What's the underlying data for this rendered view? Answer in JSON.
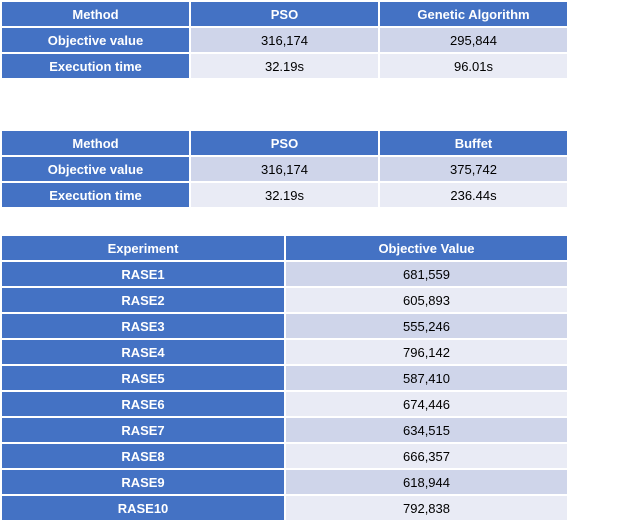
{
  "table1": {
    "headers": [
      "Method",
      "PSO",
      "Genetic Algorithm"
    ],
    "rows": [
      {
        "label": "Objective value",
        "values": [
          "316,174",
          "295,844"
        ]
      },
      {
        "label": "Execution time",
        "values": [
          "32.19s",
          "96.01s"
        ]
      }
    ]
  },
  "table2": {
    "headers": [
      "Method",
      "PSO",
      "Buffet"
    ],
    "rows": [
      {
        "label": "Objective value",
        "values": [
          "316,174",
          "375,742"
        ]
      },
      {
        "label": "Execution time",
        "values": [
          "32.19s",
          "236.44s"
        ]
      }
    ]
  },
  "table3": {
    "headers": [
      "Experiment",
      "Objective Value"
    ],
    "rows": [
      {
        "label": "RASE1",
        "value": "681,559"
      },
      {
        "label": "RASE2",
        "value": "605,893"
      },
      {
        "label": "RASE3",
        "value": "555,246"
      },
      {
        "label": "RASE4",
        "value": "796,142"
      },
      {
        "label": "RASE5",
        "value": "587,410"
      },
      {
        "label": "RASE6",
        "value": "674,446"
      },
      {
        "label": "RASE7",
        "value": "634,515"
      },
      {
        "label": "RASE8",
        "value": "666,357"
      },
      {
        "label": "RASE9",
        "value": "618,944"
      },
      {
        "label": "RASE10",
        "value": "792,838"
      }
    ]
  },
  "colors": {
    "header": "#4472c4",
    "band_dark": "#cfd5ea",
    "band_light": "#e9ebf5"
  }
}
